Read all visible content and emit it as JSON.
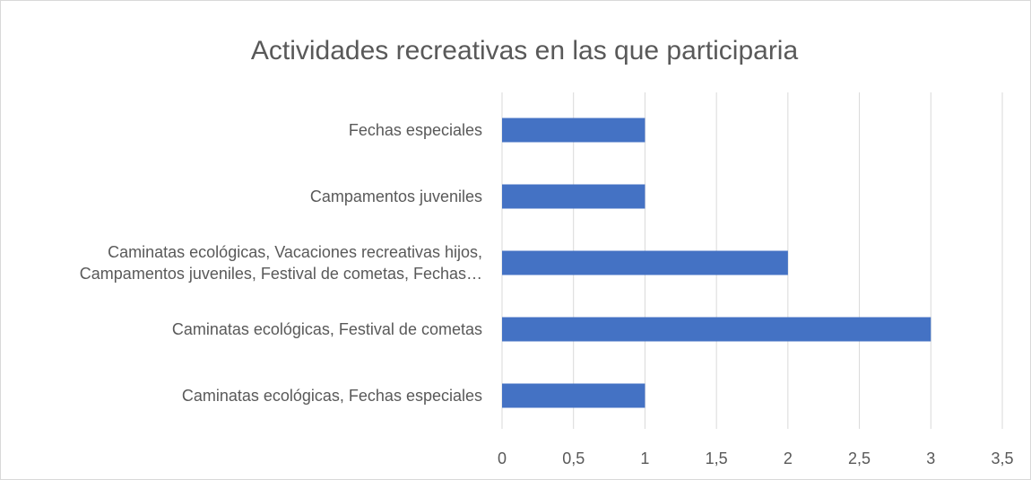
{
  "chart_data": {
    "type": "bar",
    "orientation": "horizontal",
    "title": "Actividades recreativas en las que participaria",
    "categories": [
      "Fechas especiales",
      "Campamentos juveniles",
      "Caminatas ecológicas, Vacaciones recreativas hijos, Campamentos juveniles, Festival de cometas, Fechas…",
      "Caminatas ecológicas, Festival de cometas",
      "Caminatas ecológicas, Fechas especiales"
    ],
    "values": [
      1,
      1,
      2,
      3,
      1
    ],
    "color": "#4472c4",
    "xlim": [
      0,
      3.5
    ],
    "xticks": [
      0,
      {
        "value": 0.5,
        "label": "0,5"
      },
      1,
      {
        "value": 1.5,
        "label": "1,5"
      },
      2,
      {
        "value": 2.5,
        "label": "2,5"
      },
      3,
      {
        "value": 3.5,
        "label": "3,5"
      }
    ],
    "grid": true
  }
}
